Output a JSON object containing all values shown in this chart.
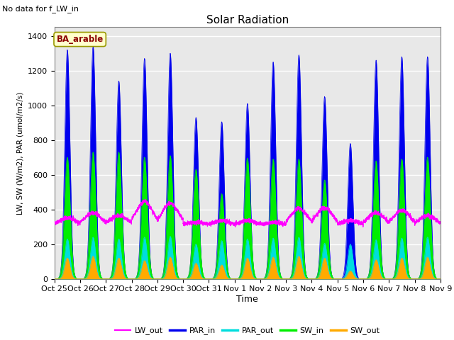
{
  "title": "Solar Radiation",
  "subtitle": "No data for f_LW_in",
  "xlabel": "Time",
  "ylabel": "LW, SW (W/m2), PAR (umol/m2/s)",
  "legend_label": "BA_arable",
  "ylim": [
    0,
    1450
  ],
  "series_colors": {
    "LW_out": "#ff00ff",
    "PAR_in": "#0000ee",
    "PAR_out": "#00dddd",
    "SW_in": "#00ee00",
    "SW_out": "#ffaa00"
  },
  "plot_bg_color": "#e8e8e8",
  "n_days": 15,
  "tick_labels": [
    "Oct 25",
    "Oct 26",
    "Oct 27",
    "Oct 28",
    "Oct 29",
    "Oct 30",
    "Oct 31",
    "Nov 1",
    "Nov 2",
    "Nov 3",
    "Nov 4",
    "Nov 5",
    "Nov 6",
    "Nov 7",
    "Nov 8",
    "Nov 9"
  ],
  "par_in_peaks": [
    1320,
    1340,
    1140,
    1270,
    1300,
    930,
    905,
    1010,
    1250,
    1290,
    1050,
    780,
    1260,
    1280,
    1280
  ],
  "sw_in_peaks": [
    700,
    730,
    730,
    700,
    710,
    630,
    490,
    695,
    690,
    690,
    570,
    50,
    680,
    690,
    700
  ],
  "par_out_peaks": [
    230,
    240,
    230,
    240,
    245,
    200,
    220,
    230,
    235,
    240,
    205,
    200,
    225,
    235,
    240
  ],
  "sw_out_peaks": [
    120,
    130,
    120,
    105,
    125,
    90,
    80,
    120,
    125,
    130,
    120,
    45,
    110,
    120,
    125
  ],
  "lw_base": 310,
  "lw_peaks": [
    350,
    380,
    365,
    445,
    435,
    325,
    335,
    335,
    325,
    405,
    410,
    335,
    380,
    395,
    365
  ]
}
